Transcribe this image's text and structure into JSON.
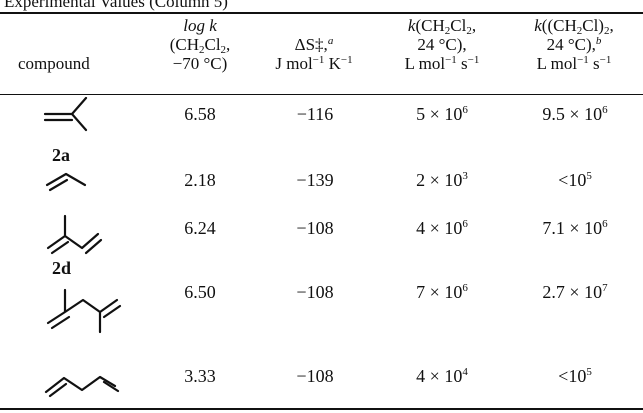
{
  "caption": "Experimental Values (Column 5)",
  "header": {
    "compound": "compound",
    "logk_1": "log k",
    "logk_2": "(CH2Cl2,",
    "logk_3": "−70 °C)",
    "ds_1": "ΔS‡,",
    "ds_footnote": "a",
    "ds_2": "J mol−1 K−1",
    "k1_1": "k(CH2Cl2,",
    "k1_2": "24 °C),",
    "k1_3": "L mol−1 s−1",
    "k2_1": "k((CH2Cl)2,",
    "k2_2": "24 °C),",
    "k2_footnote": "b",
    "k2_3": "L mol−1 s−1"
  },
  "rows": [
    {
      "structure": "isobutene",
      "label": "2a",
      "logk": "6.58",
      "ds": "−116",
      "k1_m": "5 × 10",
      "k1_e": "6",
      "k2_m": "9.5 × 10",
      "k2_e": "6"
    },
    {
      "structure": "propene",
      "label": "",
      "logk": "2.18",
      "ds": "−139",
      "k1_m": "2 × 10",
      "k1_e": "3",
      "k2_m": "<10",
      "k2_e": "5"
    },
    {
      "structure": "isoprene",
      "label": "2d",
      "logk": "6.24",
      "ds": "−108",
      "k1_m": "4 × 10",
      "k1_e": "6",
      "k2_m": "7.1 × 10",
      "k2_e": "6"
    },
    {
      "structure": "2,3-dimethylbutadiene",
      "label": "",
      "logk": "6.50",
      "ds": "−108",
      "k1_m": "7 × 10",
      "k1_e": "6",
      "k2_m": "2.7 × 10",
      "k2_e": "7"
    },
    {
      "structure": "butadiene",
      "label": "",
      "logk": "3.33",
      "ds": "−108",
      "k1_m": "4 × 10",
      "k1_e": "4",
      "k2_m": "<10",
      "k2_e": "5"
    }
  ]
}
